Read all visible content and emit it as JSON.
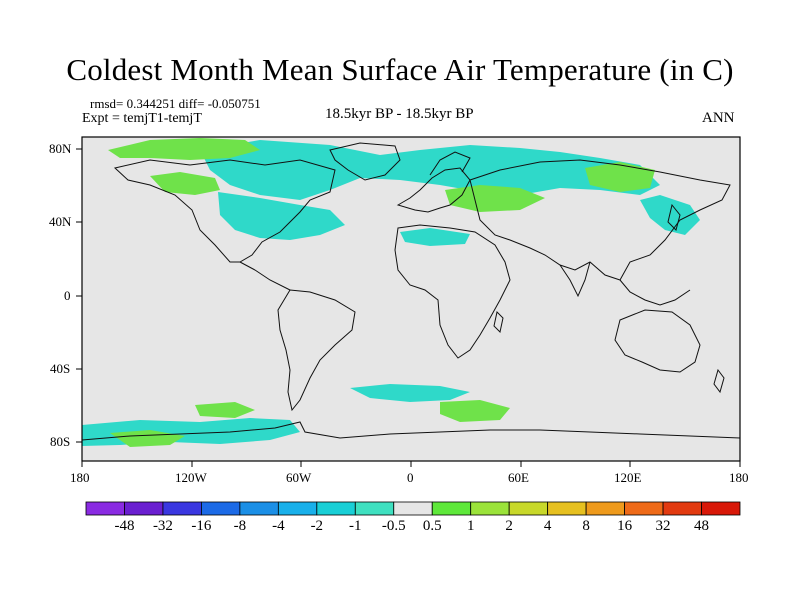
{
  "title": "Coldest Month Mean Surface Air Temperature (in C)",
  "stats_line": "rmsd= 0.344251  diff= -0.050751",
  "experiment_line": "Expt = temjT1-temjT",
  "period_label": "18.5kyr BP - 18.5kyr BP",
  "season_label": "ANN",
  "map": {
    "lon_ticks": [
      "180",
      "120W",
      "60W",
      "0",
      "60E",
      "120E",
      "180"
    ],
    "lat_ticks": [
      "80N",
      "40N",
      "0",
      "40S",
      "80S"
    ]
  },
  "colorbar": {
    "labels": [
      "-48",
      "-32",
      "-16",
      "-8",
      "-4",
      "-2",
      "-1",
      "-0.5",
      "0.5",
      "1",
      "2",
      "4",
      "8",
      "16",
      "32",
      "48"
    ],
    "colors": [
      "#8a2be2",
      "#6a1fd0",
      "#3a37e0",
      "#1c6ae6",
      "#1b8fe6",
      "#19b0ea",
      "#19cfd6",
      "#3fe0c0",
      "#e6e6e6",
      "#5ee83a",
      "#9be33a",
      "#c8d82a",
      "#e6c020",
      "#ee9a1c",
      "#ee6a18",
      "#e23a10",
      "#d81808"
    ],
    "neutral_color": "#e6e6e6",
    "warm_color": "#6fe24a",
    "cool_color": "#2fd9c9"
  }
}
